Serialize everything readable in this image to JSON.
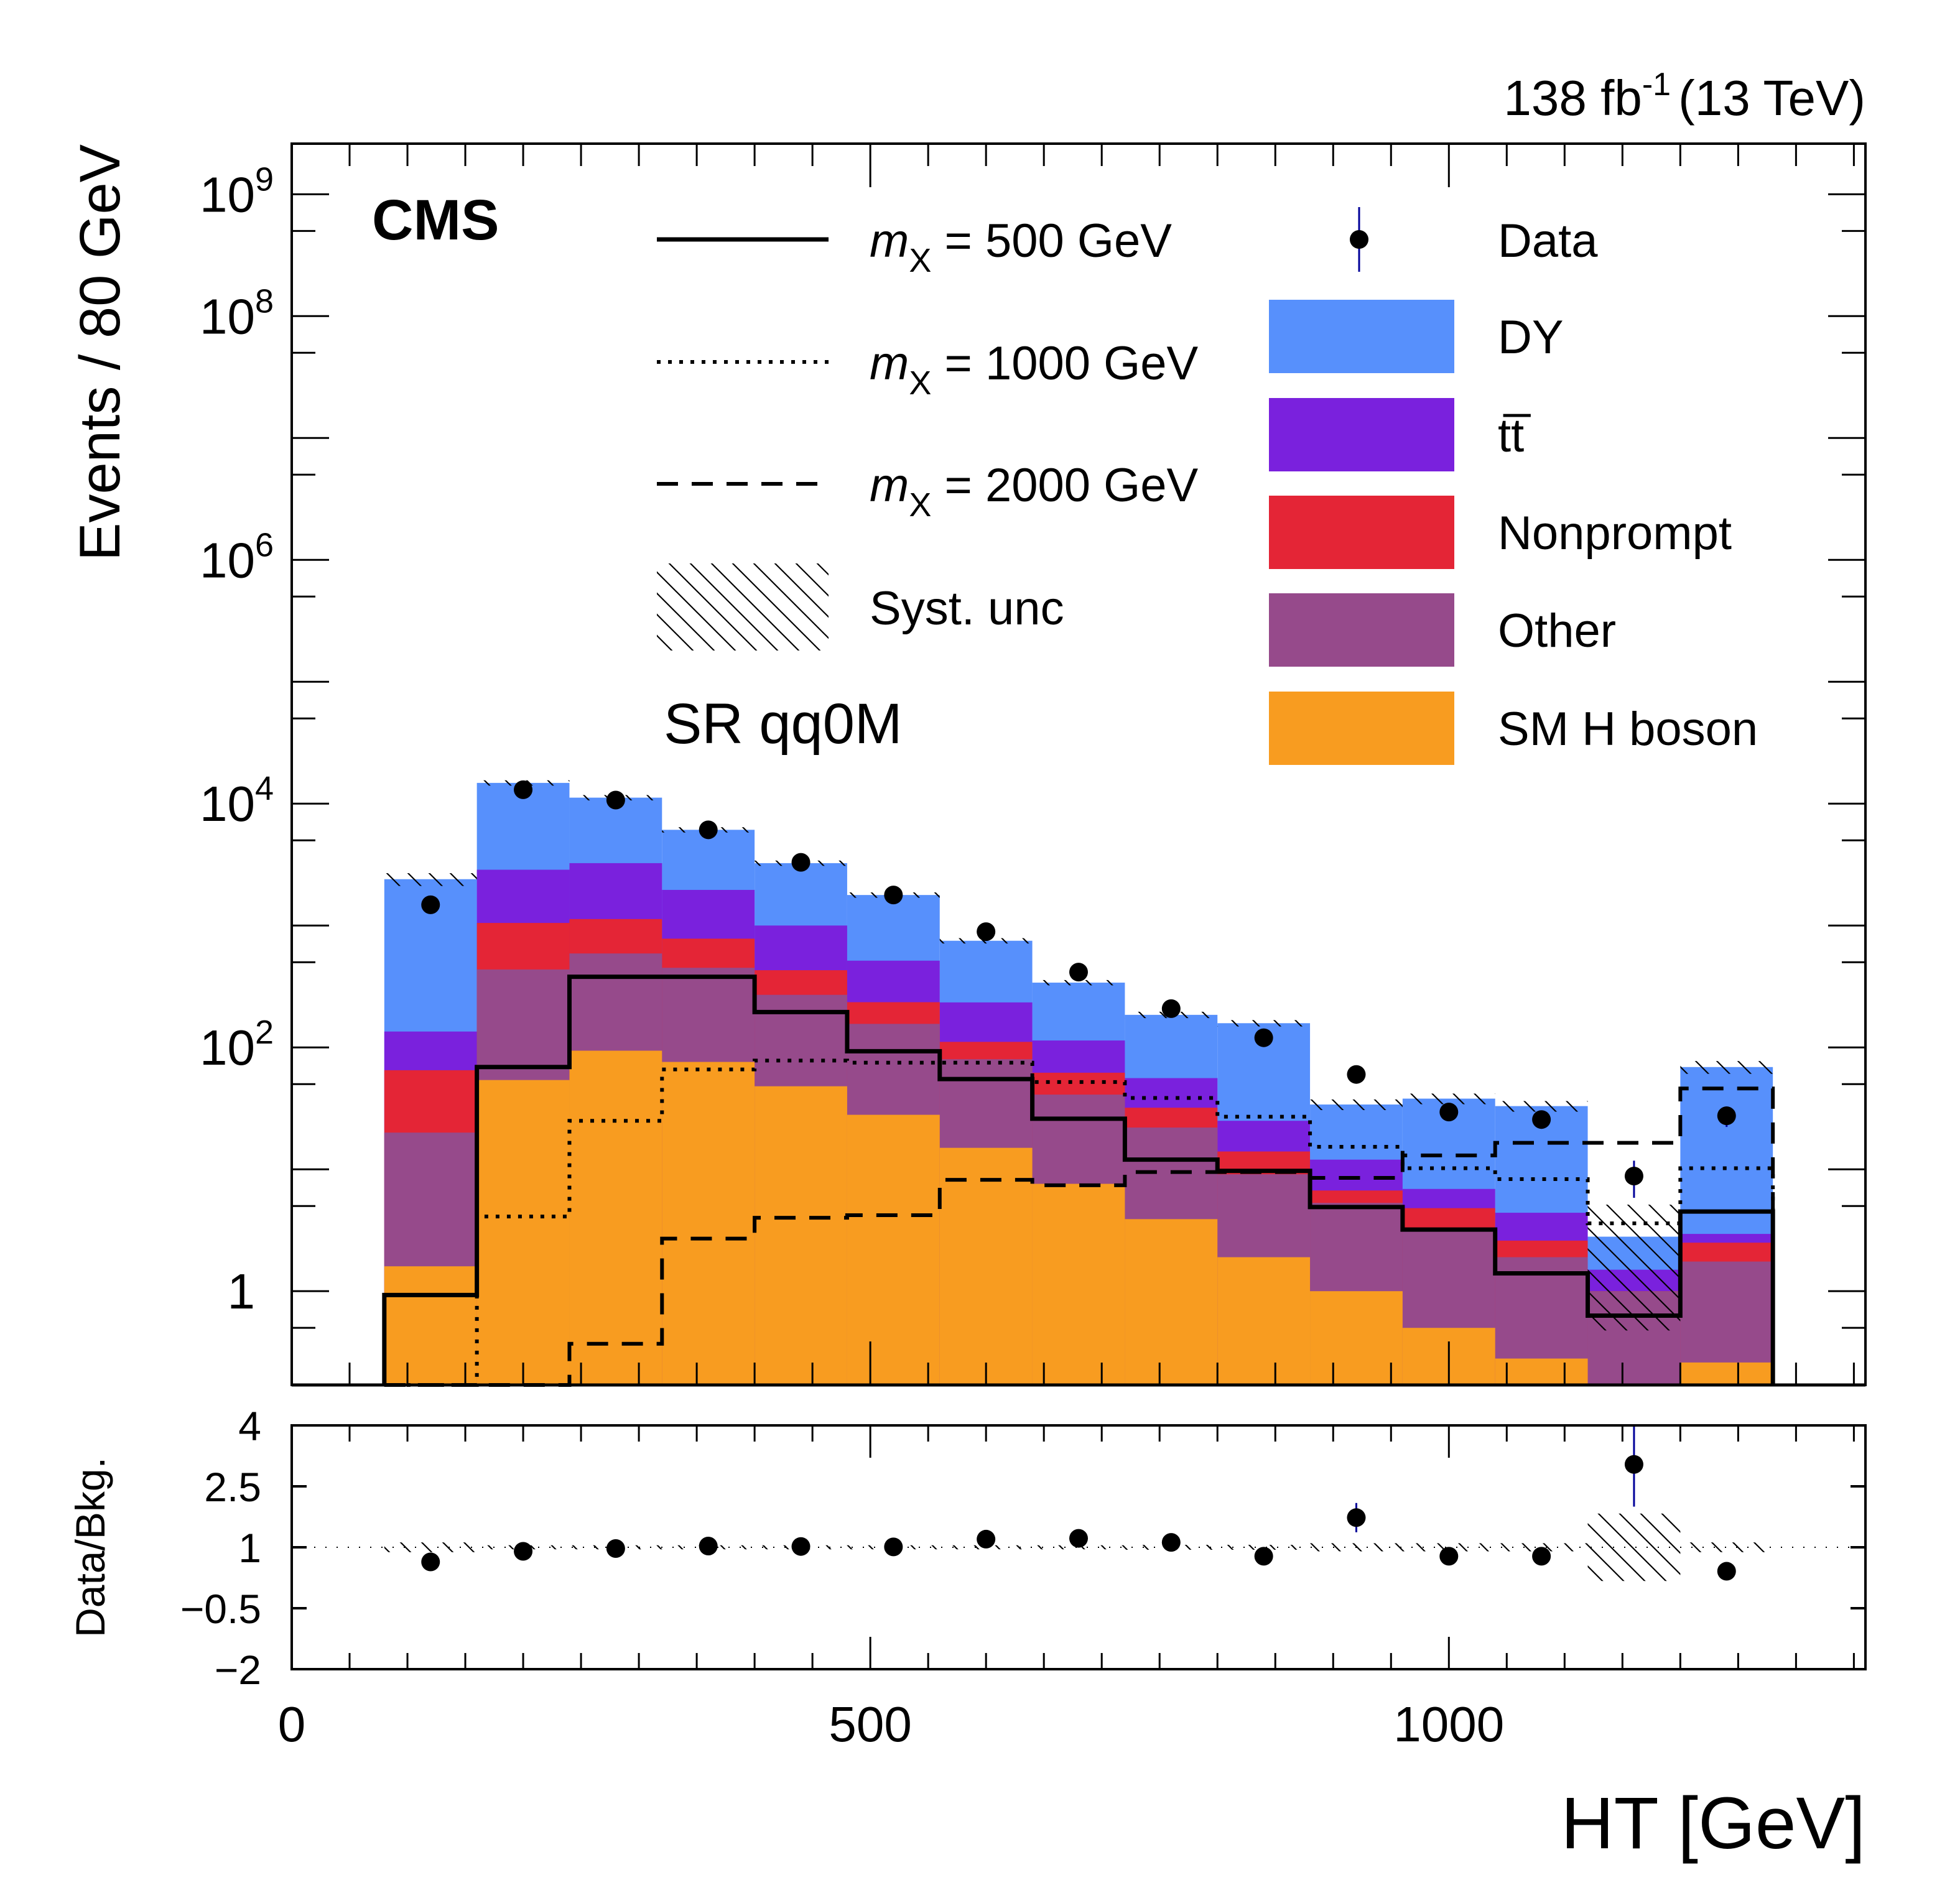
{
  "chart_data": {
    "type": "bar",
    "subtype": "stacked-histogram-with-ratio",
    "experiment_label": "CMS",
    "lumi_label": {
      "value": "138 fb",
      "superscript": "-1",
      "energy": "(13 TeV)"
    },
    "region_label": "SR qq0M",
    "xlabel": "HT [GeV]",
    "ylabel": "Events / 80 GeV",
    "ratio_ylabel": "Data/Bkg.",
    "xlim": [
      0,
      1360
    ],
    "ylim": [
      0.17,
      2600000000
    ],
    "yscale": "log",
    "ratio_ylim": [
      -2,
      4
    ],
    "x_ticks": [
      0,
      500,
      1000
    ],
    "x_tick_labels": [
      "0",
      "500",
      "1000"
    ],
    "y_ticks": [
      {
        "value": 1,
        "base": "1",
        "exp": ""
      },
      {
        "value": 100,
        "base": "10",
        "exp": "2"
      },
      {
        "value": 10000,
        "base": "10",
        "exp": "4"
      },
      {
        "value": 1000000,
        "base": "10",
        "exp": "6"
      },
      {
        "value": 100000000,
        "base": "10",
        "exp": "8"
      },
      {
        "value": 1000000000,
        "base": "10",
        "exp": "9"
      }
    ],
    "ratio_ticks": [
      {
        "value": 4,
        "label": "4"
      },
      {
        "value": 2.5,
        "label": "2.5"
      },
      {
        "value": 1,
        "label": "1"
      },
      {
        "value": -0.5,
        "label": "−0.5"
      },
      {
        "value": -2,
        "label": "−2"
      }
    ],
    "bin_edges": [
      80,
      160,
      240,
      320,
      400,
      480,
      560,
      640,
      720,
      800,
      880,
      960,
      1040,
      1120,
      1200,
      1280
    ],
    "stack_order_bottom_to_top": [
      "SM H boson",
      "Other",
      "Nonprompt",
      "tt̅",
      "DY"
    ],
    "stack_cumulative": {
      "SM H boson": [
        1.6,
        54,
        94,
        76,
        48,
        28,
        15,
        7.6,
        3.9,
        1.9,
        1.0,
        0.5,
        0.28,
        0.17,
        0.26
      ],
      "Other": [
        20,
        436,
        590,
        450,
        270,
        156,
        80,
        41,
        22,
        9.1,
        5.3,
        3.3,
        1.9,
        1.0,
        1.75
      ],
      "Nonprompt": [
        65,
        1050,
        1130,
        780,
        430,
        235,
        111,
        62,
        32,
        14,
        6.7,
        4.8,
        2.6,
        1.0,
        2.5
      ],
      "tt̅": [
        135,
        2870,
        3250,
        1960,
        1000,
        515,
        234,
        114,
        56,
        25,
        12,
        6.9,
        4.4,
        1.5,
        2.95
      ],
      "DY": [
        2400,
        14800,
        11200,
        6100,
        3250,
        1780,
        750,
        340,
        185,
        158,
        34,
        38,
        33,
        2.8,
        69
      ]
    },
    "syst_unc_rel": [
      0.12,
      0.05,
      0.05,
      0.05,
      0.05,
      0.05,
      0.05,
      0.05,
      0.06,
      0.06,
      0.1,
      0.1,
      0.1,
      0.83,
      0.12
    ],
    "data": [
      1480,
      13000,
      10700,
      6100,
      3300,
      1780,
      890,
      415,
      208,
      120,
      60,
      29.5,
      25.6,
      8.8,
      27.5
    ],
    "data_err_shown": [
      false,
      false,
      false,
      false,
      false,
      false,
      false,
      false,
      false,
      false,
      false,
      false,
      false,
      true,
      true
    ],
    "signals": [
      {
        "name": "m_X = 500 GeV",
        "mass": "500",
        "style": "solid",
        "values": [
          0.93,
          69,
          380,
          380,
          195,
          93,
          55,
          26,
          12,
          9.7,
          4.9,
          3.2,
          1.4,
          0.63,
          4.5
        ]
      },
      {
        "name": "m_X = 1000 GeV",
        "mass": "1000",
        "style": "dotted",
        "values": [
          0.17,
          4.1,
          25,
          66,
          78,
          75,
          75,
          52,
          38.5,
          27,
          15.3,
          10.2,
          8.3,
          3.6,
          10.2
        ]
      },
      {
        "name": "m_X = 2000 GeV",
        "mass": "2000",
        "style": "dashed",
        "values": [
          0.17,
          0.17,
          0.37,
          2.7,
          4.0,
          4.2,
          8.2,
          7.4,
          9.5,
          9.5,
          8.5,
          13,
          16.5,
          16.5,
          46
        ]
      }
    ],
    "ratio": {
      "values": [
        0.64,
        0.9,
        0.97,
        1.03,
        1.02,
        1.01,
        1.2,
        1.22,
        1.12,
        0.78,
        1.73,
        0.78,
        0.78,
        3.04,
        0.41
      ],
      "err_low": [
        0,
        0,
        0,
        0,
        0,
        0,
        0,
        0,
        0,
        0,
        0.36,
        0,
        0,
        1.04,
        0
      ],
      "err_high": [
        0,
        0,
        0,
        0,
        0,
        0,
        0,
        0,
        0,
        0,
        0.36,
        0,
        0,
        1.0,
        0
      ],
      "band_rel": [
        0.12,
        0.05,
        0.05,
        0.05,
        0.05,
        0.05,
        0.05,
        0.05,
        0.06,
        0.06,
        0.1,
        0.1,
        0.1,
        0.83,
        0.12
      ]
    },
    "legend": {
      "placement": "top-center-and-top-right",
      "signal_entries": [
        {
          "prefix": "m",
          "sub": "X",
          "text": " = 500 GeV",
          "style": "solid"
        },
        {
          "prefix": "m",
          "sub": "X",
          "text": " = 1000 GeV",
          "style": "dotted"
        },
        {
          "prefix": "m",
          "sub": "X",
          "text": " = 2000 GeV",
          "style": "dashed"
        },
        {
          "text": "Syst. unc",
          "style": "hatch"
        }
      ],
      "bkg_entries": [
        {
          "label": "Data",
          "style": "marker"
        },
        {
          "label": "DY",
          "color": "#5790fc"
        },
        {
          "label": "tt̅",
          "color": "#7a21dd"
        },
        {
          "label": "Nonprompt",
          "color": "#e42536"
        },
        {
          "label": "Other",
          "color": "#964a8b"
        },
        {
          "label": "SM H boson",
          "color": "#f89c20"
        }
      ]
    },
    "colors": {
      "DY": "#5790fc",
      "tt̅": "#7a21dd",
      "Nonprompt": "#e42536",
      "Other": "#964a8b",
      "SM H boson": "#f89c20",
      "data_err": "#000099"
    }
  }
}
